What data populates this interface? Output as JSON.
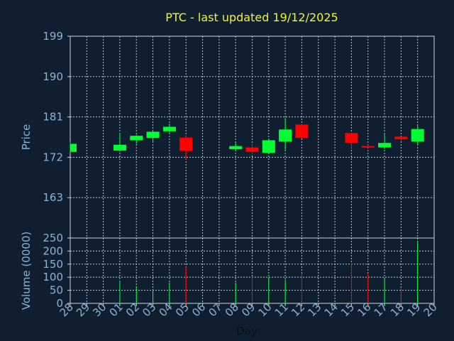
{
  "chart_data": {
    "type": "candlestick",
    "title": "PTC - last updated 19/12/2025",
    "price_axis": {
      "label": "Price",
      "ylim": [
        154,
        199
      ],
      "ticks": [
        163,
        172,
        181,
        190,
        199
      ]
    },
    "volume_axis": {
      "label": "Volume (0000)",
      "ylim": [
        0,
        250
      ],
      "ticks": [
        0,
        50,
        100,
        150,
        200,
        250
      ]
    },
    "x_axis": {
      "label": "Day",
      "ticks": [
        "28",
        "29",
        "30",
        "01",
        "02",
        "03",
        "04",
        "05",
        "06",
        "07",
        "08",
        "09",
        "10",
        "11",
        "12",
        "13",
        "14",
        "15",
        "16",
        "17",
        "18",
        "19",
        "20"
      ]
    },
    "grid": true,
    "colors": {
      "up": "#00ff33",
      "down": "#ff0000",
      "background": "#0f1f2f",
      "text": "#8bb3d6",
      "title": "#f3f329"
    },
    "series": [
      {
        "date": "28",
        "open": 173.2,
        "high": 175.5,
        "low": 173.2,
        "close": 175.0,
        "volume": 0
      },
      {
        "date": "01",
        "open": 173.5,
        "high": 177.5,
        "low": 173.2,
        "close": 174.8,
        "volume": 85
      },
      {
        "date": "02",
        "open": 175.8,
        "high": 177.0,
        "low": 175.0,
        "close": 176.8,
        "volume": 65
      },
      {
        "date": "03",
        "open": 176.3,
        "high": 178.0,
        "low": 175.3,
        "close": 177.7,
        "volume": 55
      },
      {
        "date": "04",
        "open": 177.8,
        "high": 179.5,
        "low": 177.5,
        "close": 178.8,
        "volume": 80
      },
      {
        "date": "05",
        "open": 176.4,
        "high": 176.8,
        "low": 171.4,
        "close": 173.4,
        "volume": 140
      },
      {
        "date": "08",
        "open": 173.8,
        "high": 175.3,
        "low": 173.6,
        "close": 174.5,
        "volume": 80
      },
      {
        "date": "09",
        "open": 174.2,
        "high": 175.0,
        "low": 172.6,
        "close": 173.2,
        "volume": 100
      },
      {
        "date": "10",
        "open": 173.0,
        "high": 176.0,
        "low": 173.0,
        "close": 175.8,
        "volume": 100
      },
      {
        "date": "11",
        "open": 175.5,
        "high": 180.8,
        "low": 173.6,
        "close": 178.2,
        "volume": 90
      },
      {
        "date": "12",
        "open": 179.3,
        "high": 179.3,
        "low": 176.2,
        "close": 176.3,
        "volume": 115
      },
      {
        "date": "15",
        "open": 177.4,
        "high": 177.4,
        "low": 173.8,
        "close": 175.2,
        "volume": 155
      },
      {
        "date": "16",
        "open": 174.5,
        "high": 174.8,
        "low": 174.0,
        "close": 174.3,
        "volume": 115
      },
      {
        "date": "17",
        "open": 174.2,
        "high": 177.2,
        "low": 173.8,
        "close": 175.2,
        "volume": 95
      },
      {
        "date": "18",
        "open": 176.6,
        "high": 176.6,
        "low": 175.6,
        "close": 176.0,
        "volume": 60
      },
      {
        "date": "19",
        "open": 175.5,
        "high": 179.0,
        "low": 174.7,
        "close": 178.3,
        "volume": 235
      }
    ]
  }
}
